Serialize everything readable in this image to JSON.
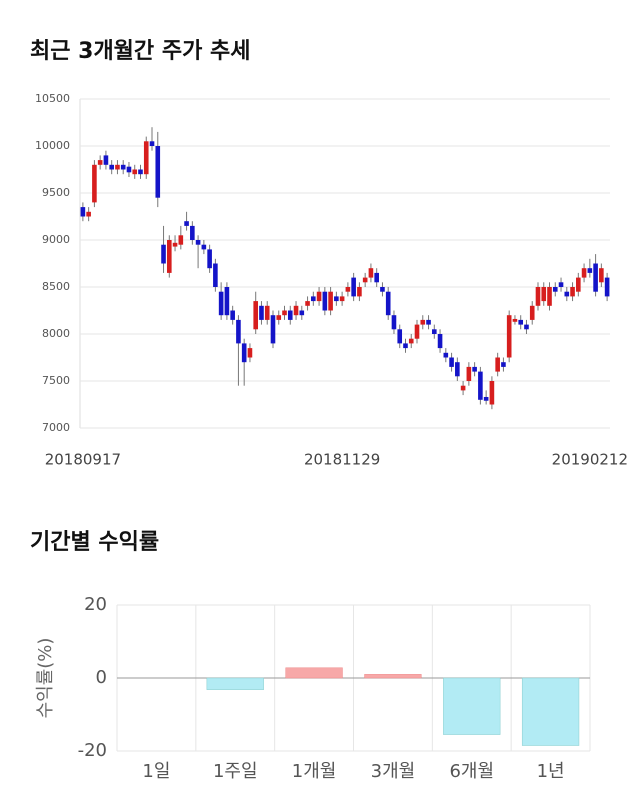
{
  "chart_data": [
    {
      "type": "candlestick",
      "title": "최근 3개월간 주가 추세",
      "categories": [
        "20180917",
        null,
        null,
        null,
        null,
        null,
        null,
        null,
        null,
        null,
        null,
        null,
        null,
        null,
        null,
        null,
        null,
        null,
        null,
        null,
        null,
        null,
        null,
        null,
        null,
        null,
        null,
        null,
        null,
        null,
        null,
        null,
        null,
        null,
        null,
        null,
        null,
        null,
        null,
        null,
        null,
        null,
        null,
        null,
        null,
        "20181129",
        null,
        null,
        null,
        null,
        null,
        null,
        null,
        null,
        null,
        null,
        null,
        null,
        null,
        null,
        null,
        null,
        null,
        null,
        null,
        null,
        null,
        null,
        null,
        null,
        null,
        null,
        null,
        null,
        null,
        null,
        null,
        null,
        null,
        null,
        null,
        null,
        null,
        null,
        null,
        null,
        null,
        null,
        "20190212",
        null,
        null,
        null
      ],
      "open": [
        9350,
        9250,
        9400,
        9800,
        9900,
        9800,
        9750,
        9800,
        9780,
        9700,
        9750,
        9700,
        10050,
        10000,
        8950,
        8650,
        8930,
        8950,
        9200,
        9150,
        9000,
        8950,
        8900,
        8750,
        8450,
        8500,
        8250,
        8150,
        7900,
        7750,
        8050,
        8300,
        8150,
        8200,
        8150,
        8200,
        8250,
        8200,
        8250,
        8300,
        8400,
        8350,
        8450,
        8250,
        8400,
        8350,
        8450,
        8600,
        8400,
        8550,
        8600,
        8650,
        8500,
        8450,
        8200,
        8050,
        7900,
        7900,
        7950,
        8100,
        8150,
        8050,
        8000,
        7800,
        7750,
        7700,
        7400,
        7500,
        7650,
        7600,
        7330,
        7250,
        7600,
        7700,
        7750,
        8130,
        8150,
        8100,
        8150,
        8300,
        8350,
        8300,
        8500,
        8550,
        8450,
        8400,
        8450,
        8600,
        8700,
        8750,
        8550,
        8600
      ],
      "high": [
        9400,
        9350,
        9850,
        9900,
        9950,
        9850,
        9850,
        9850,
        9830,
        9800,
        9800,
        10100,
        10200,
        10150,
        9150,
        9050,
        9050,
        9150,
        9300,
        9200,
        9050,
        9000,
        8950,
        8800,
        8550,
        8550,
        8300,
        8200,
        7950,
        7900,
        8450,
        8350,
        8350,
        8250,
        8250,
        8300,
        8300,
        8350,
        8300,
        8400,
        8450,
        8500,
        8500,
        8500,
        8450,
        8450,
        8550,
        8650,
        8550,
        8650,
        8750,
        8700,
        8550,
        8500,
        8250,
        8100,
        7950,
        8000,
        8150,
        8200,
        8200,
        8100,
        8050,
        7850,
        7800,
        7750,
        7500,
        7700,
        7700,
        7650,
        7400,
        7550,
        7800,
        7750,
        8250,
        8200,
        8200,
        8150,
        8350,
        8550,
        8550,
        8550,
        8550,
        8600,
        8500,
        8550,
        8650,
        8750,
        8800,
        8850,
        8750,
        8650
      ],
      "low": [
        9200,
        9200,
        9350,
        9750,
        9750,
        9700,
        9700,
        9700,
        9670,
        9650,
        9650,
        9650,
        9950,
        9350,
        8650,
        8600,
        8880,
        8900,
        9100,
        8950,
        8700,
        8850,
        8650,
        8450,
        8150,
        8150,
        8100,
        7450,
        7450,
        7700,
        8000,
        8100,
        8100,
        7850,
        8100,
        8150,
        8100,
        8150,
        8150,
        8250,
        8300,
        8300,
        8200,
        8200,
        8300,
        8300,
        8400,
        8350,
        8350,
        8500,
        8550,
        8500,
        8400,
        8150,
        8000,
        7850,
        7800,
        7850,
        7900,
        8050,
        8050,
        7950,
        7800,
        7700,
        7600,
        7500,
        7350,
        7450,
        7550,
        7250,
        7250,
        7200,
        7550,
        7600,
        7700,
        8100,
        8050,
        8000,
        8100,
        8250,
        8300,
        8250,
        8400,
        8450,
        8350,
        8350,
        8400,
        8550,
        8600,
        8400,
        8500,
        8350
      ],
      "close": [
        9250,
        9300,
        9800,
        9850,
        9800,
        9750,
        9800,
        9750,
        9720,
        9750,
        9700,
        10050,
        10000,
        9450,
        8750,
        9000,
        8970,
        9050,
        9150,
        9000,
        8950,
        8900,
        8700,
        8500,
        8200,
        8200,
        8150,
        7900,
        7700,
        7850,
        8350,
        8150,
        8300,
        7900,
        8200,
        8250,
        8150,
        8300,
        8200,
        8350,
        8350,
        8450,
        8250,
        8450,
        8350,
        8400,
        8500,
        8400,
        8500,
        8600,
        8700,
        8550,
        8450,
        8200,
        8050,
        7900,
        7850,
        7950,
        8100,
        8150,
        8100,
        8000,
        7850,
        7750,
        7650,
        7550,
        7450,
        7650,
        7600,
        7300,
        7290,
        7500,
        7750,
        7650,
        8200,
        8160,
        8100,
        8050,
        8300,
        8500,
        8500,
        8500,
        8450,
        8500,
        8400,
        8500,
        8600,
        8700,
        8650,
        8450,
        8700,
        8400
      ],
      "up_color": "#d71e1e",
      "down_color": "#1414c8",
      "ylim": [
        7000,
        10500
      ],
      "yticks": [
        7000,
        7500,
        8000,
        8500,
        9000,
        9500,
        10000,
        10500
      ],
      "grid": true
    },
    {
      "type": "bar",
      "title": "기간별 수익률",
      "y_label": "수익률(%)",
      "categories": [
        "1일",
        "1주일",
        "1개월",
        "3개월",
        "6개월",
        "1년"
      ],
      "values": [
        0,
        -3.2,
        2.8,
        1.0,
        -15.5,
        -18.5
      ],
      "positive_color": "#f7a8a8",
      "negative_color": "#b2ebf4",
      "ylim": [
        -20,
        20
      ],
      "yticks": [
        -20,
        0,
        20
      ],
      "grid": true
    }
  ]
}
